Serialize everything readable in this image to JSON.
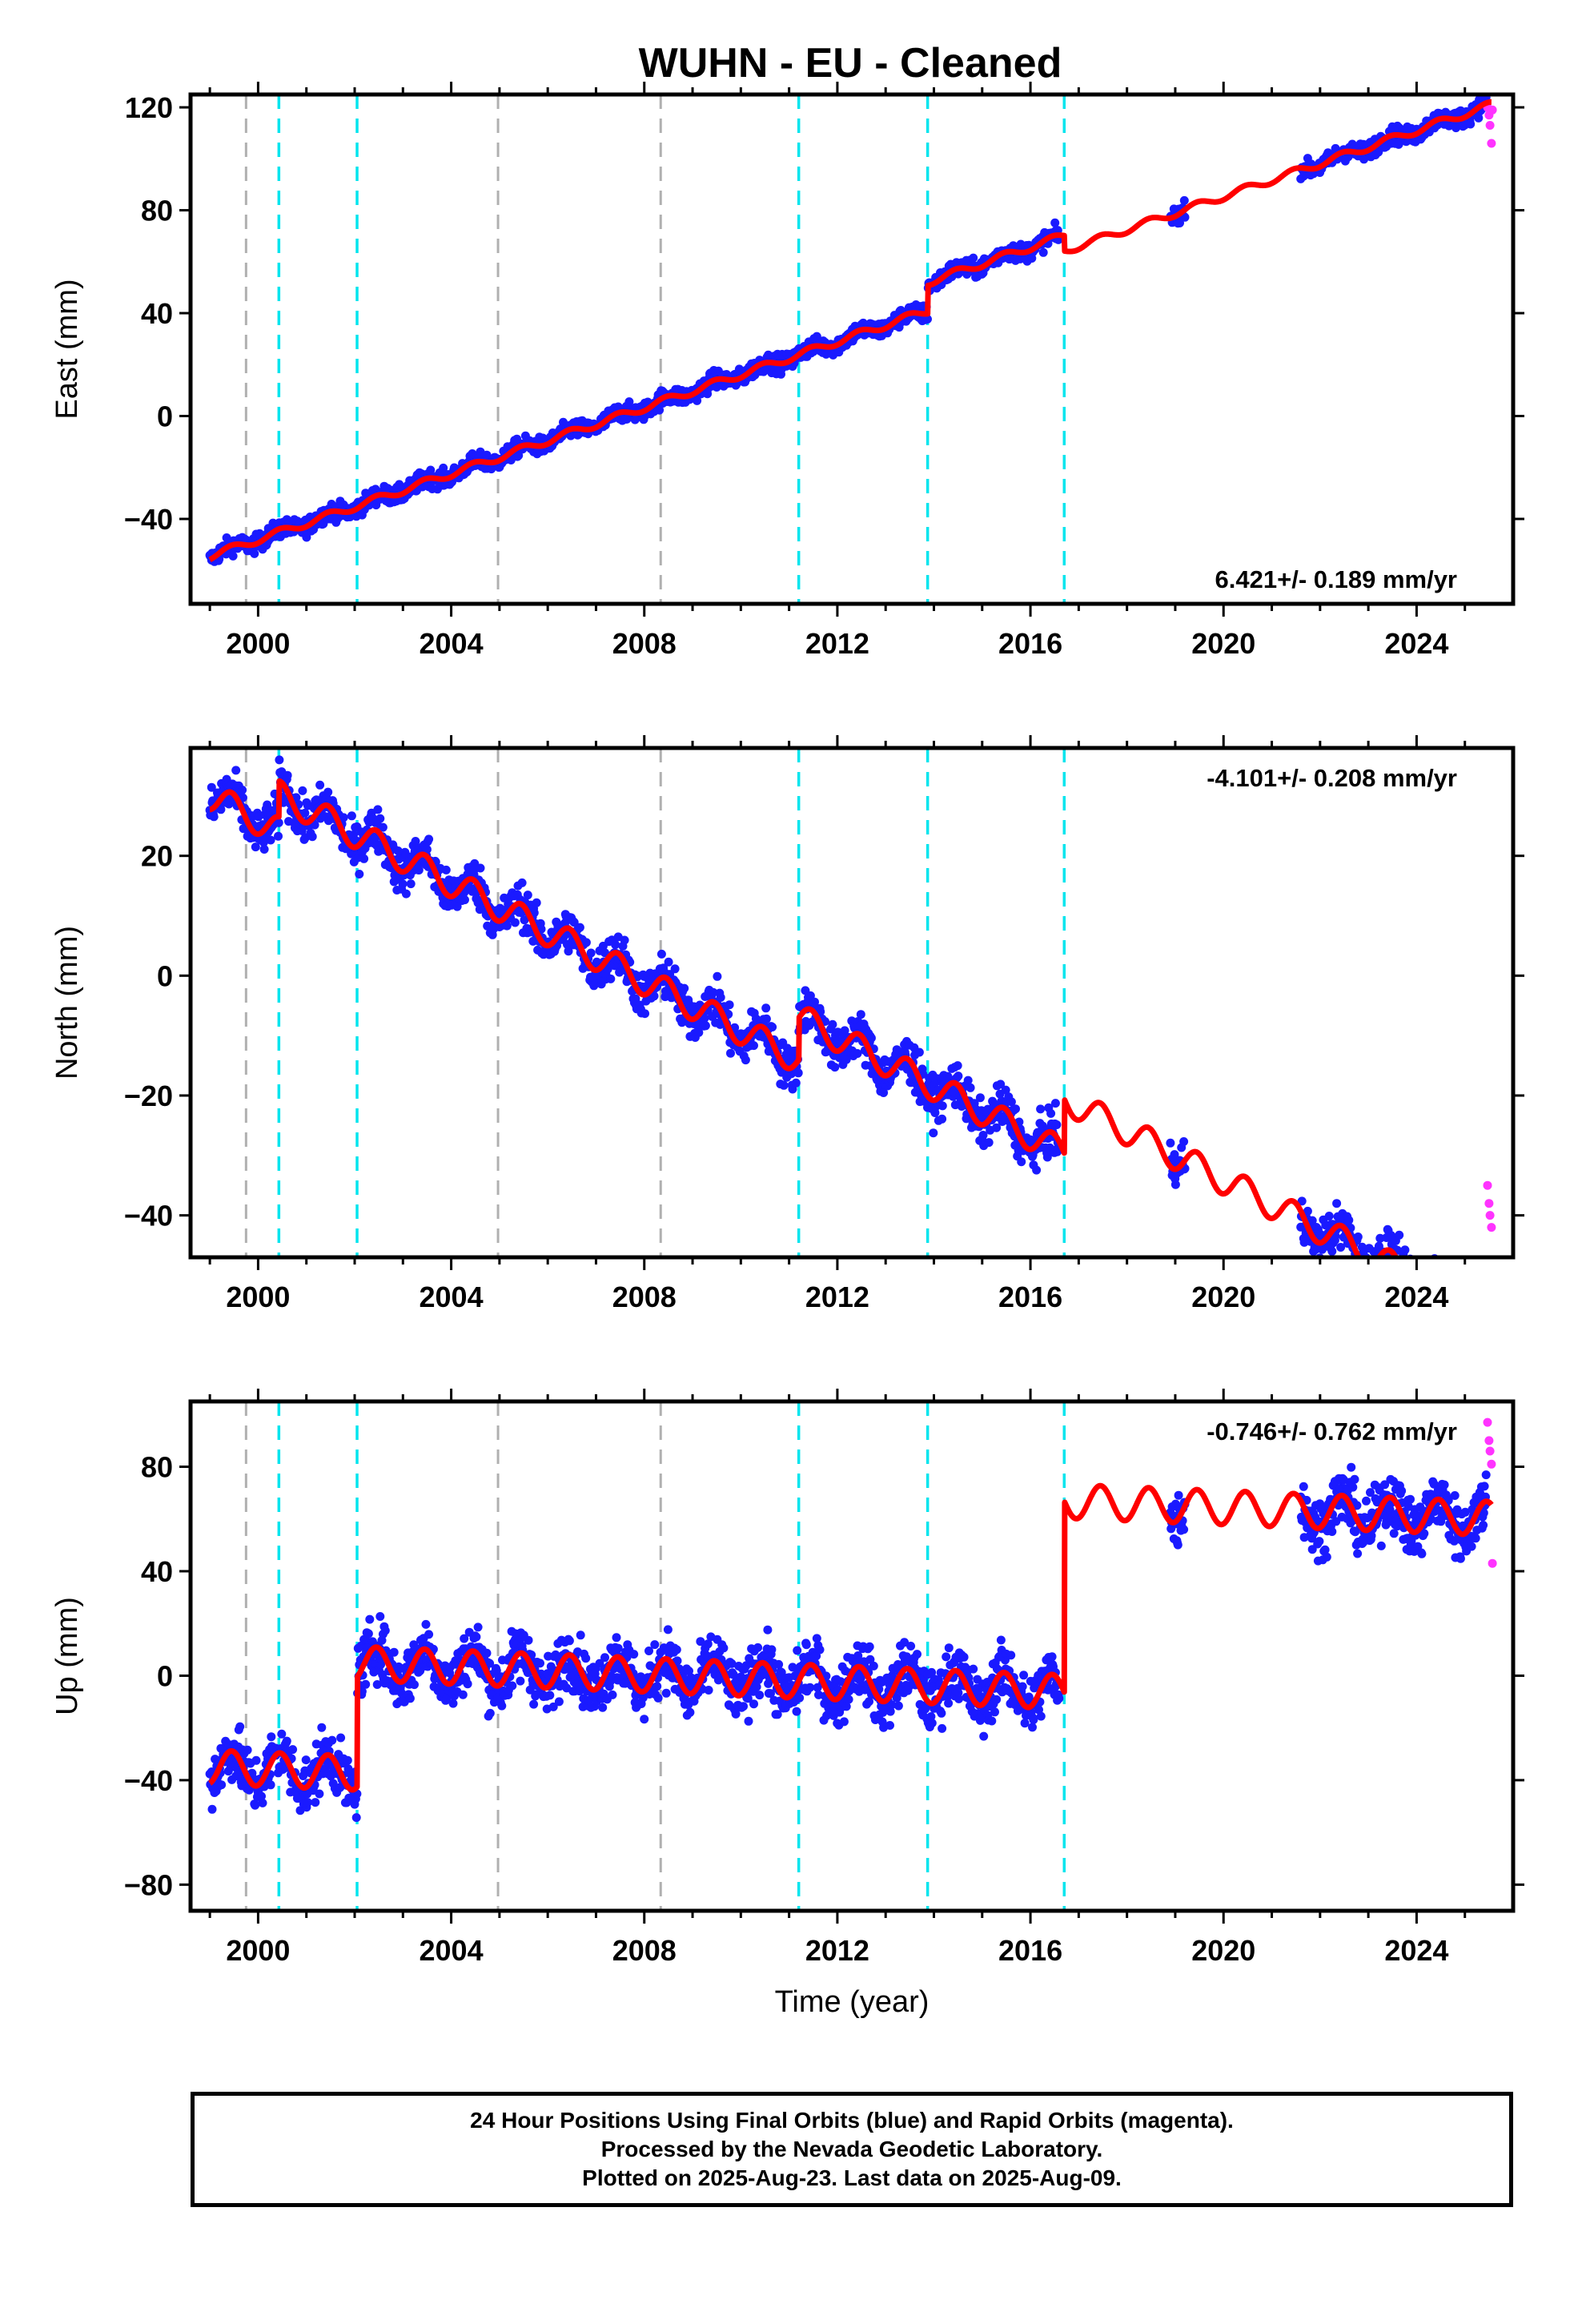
{
  "title": "WUHN  - EU - Cleaned",
  "x_axis": {
    "label": "Time (year)",
    "ticks": [
      "2000",
      "2004",
      "2008",
      "2012",
      "2016",
      "2020",
      "2024"
    ]
  },
  "footer": {
    "line1": "24 Hour Positions Using Final Orbits (blue) and Rapid Orbits (magenta).",
    "line2": "Processed by the Nevada Geodetic Laboratory.",
    "line3": "Plotted on 2025-Aug-23. Last data on 2025-Aug-09."
  },
  "colors": {
    "final": "#1a1aff",
    "rapid": "#ff33ff",
    "model": "#ff0000",
    "gray_marker": "#b0b0b0",
    "cyan_marker": "#00e5ee"
  },
  "chart_data": [
    {
      "type": "scatter",
      "panel": "east",
      "ylabel": "East (mm)",
      "xlim": [
        1998.6,
        2026.0
      ],
      "ylim": [
        -73,
        125
      ],
      "yticks": [
        "120",
        "80",
        "40",
        "0",
        "−40"
      ],
      "rate_text": "6.421+/- 0.189 mm/yr",
      "gray_markers": [
        1999.75,
        2004.97,
        2008.34
      ],
      "cyan_markers": [
        2000.43,
        2002.05,
        2011.2,
        2013.87,
        2016.7
      ],
      "offsets": [
        [
          2013.87,
          11.0
        ],
        [
          2016.7,
          -6.0
        ]
      ],
      "model": {
        "start": -54.5,
        "rate": 6.421,
        "annual_amp": 1.4
      },
      "final_segments": [
        [
          1999.0,
          2016.6
        ],
        [
          2018.9,
          2019.2
        ],
        [
          2021.6,
          2025.45
        ]
      ],
      "rapid_points": [
        [
          2025.47,
          120
        ],
        [
          2025.5,
          117
        ],
        [
          2025.52,
          113
        ],
        [
          2025.55,
          106
        ],
        [
          2025.57,
          119
        ]
      ]
    },
    {
      "type": "scatter",
      "panel": "north",
      "ylabel": "North (mm)",
      "xlim": [
        1998.6,
        2026.0
      ],
      "ylim": [
        -47,
        38
      ],
      "yticks": [
        "20",
        "0",
        "−20",
        "−40"
      ],
      "rate_text": "-4.101+/- 0.208 mm/yr",
      "gray_markers": [
        1999.75,
        2004.97,
        2008.34
      ],
      "cyan_markers": [
        2000.43,
        2002.05,
        2011.2,
        2013.87,
        2016.7
      ],
      "offsets": [
        [
          2000.43,
          6.0
        ],
        [
          2011.2,
          7.0
        ],
        [
          2016.7,
          9.0
        ]
      ],
      "model": {
        "start": 30.0,
        "rate": -4.101,
        "annual_amp": 2.4
      },
      "final_segments": [
        [
          1999.0,
          2016.6
        ],
        [
          2018.9,
          2019.2
        ],
        [
          2021.6,
          2025.45
        ]
      ],
      "rapid_points": [
        [
          2025.47,
          -35
        ],
        [
          2025.5,
          -38
        ],
        [
          2025.52,
          -40
        ],
        [
          2025.55,
          -42
        ]
      ]
    },
    {
      "type": "scatter",
      "panel": "up",
      "ylabel": "Up (mm)",
      "xlim": [
        1998.6,
        2026.0
      ],
      "ylim": [
        -90,
        105
      ],
      "yticks": [
        "80",
        "40",
        "0",
        "−40",
        "−80"
      ],
      "rate_text": "-0.746+/- 0.762 mm/yr",
      "gray_markers": [
        1999.75,
        2004.97,
        2008.34
      ],
      "cyan_markers": [
        2000.43,
        2002.05,
        2011.2,
        2013.87,
        2016.7
      ],
      "offsets": [
        [
          2002.05,
          42.0
        ],
        [
          2016.7,
          88.0
        ]
      ],
      "model": {
        "start": -35.0,
        "rate": -0.746,
        "annual_amp": 6.5
      },
      "final_segments": [
        [
          1999.0,
          2016.6
        ],
        [
          2018.9,
          2019.2
        ],
        [
          2021.6,
          2025.45
        ]
      ],
      "rapid_points": [
        [
          2025.47,
          97
        ],
        [
          2025.5,
          90
        ],
        [
          2025.52,
          86
        ],
        [
          2025.55,
          81
        ],
        [
          2025.57,
          43
        ]
      ]
    }
  ]
}
